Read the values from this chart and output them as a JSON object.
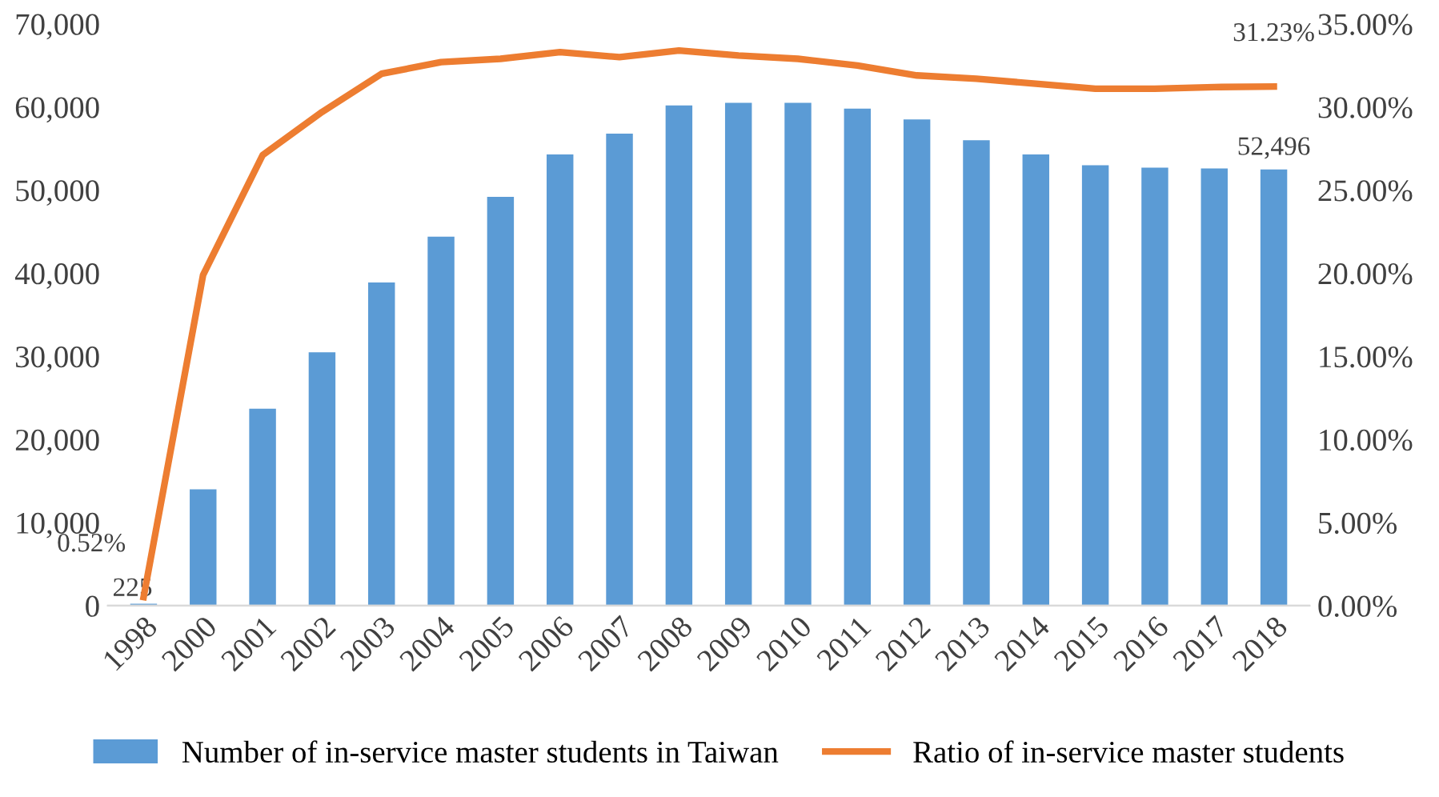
{
  "chart_data": {
    "type": "bar",
    "categories": [
      "1998",
      "2000",
      "2001",
      "2002",
      "2003",
      "2004",
      "2005",
      "2006",
      "2007",
      "2008",
      "2009",
      "2010",
      "2011",
      "2012",
      "2013",
      "2014",
      "2015",
      "2016",
      "2017",
      "2018"
    ],
    "series": [
      {
        "name": "Number of in-service master students in Taiwan",
        "color": "#5b9bd5",
        "values": [
          225,
          14000,
          23700,
          30500,
          38900,
          44400,
          49200,
          54300,
          56800,
          60200,
          60500,
          60500,
          59800,
          58500,
          56000,
          54300,
          53000,
          52700,
          52600,
          52496
        ],
        "value_labels": [
          "225",
          null,
          null,
          null,
          null,
          null,
          null,
          null,
          null,
          null,
          null,
          null,
          null,
          null,
          null,
          null,
          null,
          null,
          null,
          "52,496"
        ]
      },
      {
        "name": "Ratio of in-service master students",
        "type": "line",
        "axis": "y2",
        "color": "#ed7d31",
        "values": [
          0.52,
          19.9,
          27.1,
          29.7,
          32.0,
          32.7,
          32.9,
          33.3,
          33.0,
          33.4,
          33.1,
          32.9,
          32.5,
          31.9,
          31.7,
          31.4,
          31.1,
          31.1,
          31.2,
          31.23
        ],
        "value_labels": [
          "0.52%",
          null,
          null,
          null,
          null,
          null,
          null,
          null,
          null,
          null,
          null,
          null,
          null,
          null,
          null,
          null,
          null,
          null,
          null,
          "31.23%"
        ]
      }
    ],
    "ylim": [
      0,
      70000
    ],
    "yticks": [
      0,
      {
        "value": 10000,
        "label": "10,000"
      },
      {
        "value": 20000,
        "label": "20,000"
      },
      {
        "value": 30000,
        "label": "30,000"
      },
      {
        "value": 40000,
        "label": "40,000"
      },
      {
        "value": 50000,
        "label": "50,000"
      },
      {
        "value": 60000,
        "label": "60,000"
      },
      {
        "value": 70000,
        "label": "70,000"
      }
    ],
    "y2lim": [
      0,
      35
    ],
    "y2ticks": [
      {
        "value": 0,
        "label": "0.00%"
      },
      {
        "value": 5,
        "label": "5.00%"
      },
      {
        "value": 10,
        "label": "10.00%"
      },
      {
        "value": 15,
        "label": "15.00%"
      },
      {
        "value": 20,
        "label": "20.00%"
      },
      {
        "value": 25,
        "label": "25.00%"
      },
      {
        "value": 30,
        "label": "30.00%"
      },
      {
        "value": 35,
        "label": "35.00%"
      }
    ],
    "grid": false,
    "legend": "bottom",
    "marker": "none",
    "line_style": "solid"
  }
}
